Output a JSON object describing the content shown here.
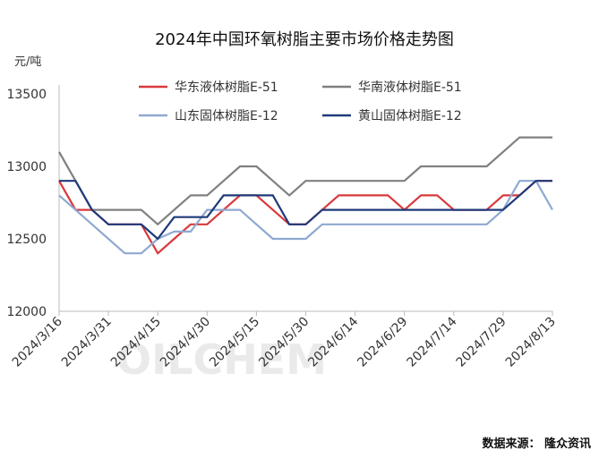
{
  "chart_data": {
    "type": "line",
    "title": "2024年中国环氧树脂主要市场价格走势图",
    "y_label": "元/吨",
    "source": "数据来源：  隆众资讯",
    "watermark": "OILCHEM",
    "x": [
      "2024/3/16",
      "2024/3/21",
      "2024/3/26",
      "2024/3/31",
      "2024/4/5",
      "2024/4/10",
      "2024/4/15",
      "2024/4/20",
      "2024/4/25",
      "2024/4/30",
      "2024/5/5",
      "2024/5/10",
      "2024/5/15",
      "2024/5/20",
      "2024/5/25",
      "2024/5/30",
      "2024/6/4",
      "2024/6/9",
      "2024/6/14",
      "2024/6/19",
      "2024/6/24",
      "2024/6/29",
      "2024/7/4",
      "2024/7/9",
      "2024/7/14",
      "2024/7/19",
      "2024/7/24",
      "2024/7/29",
      "2024/8/3",
      "2024/8/8",
      "2024/8/13"
    ],
    "xticks": [
      "2024/3/16",
      "2024/3/31",
      "2024/4/15",
      "2024/4/30",
      "2024/5/15",
      "2024/5/30",
      "2024/6/14",
      "2024/6/29",
      "2024/7/14",
      "2024/7/29",
      "2024/8/13"
    ],
    "ylim": [
      12000,
      13500
    ],
    "yticks": [
      12000,
      12500,
      13000,
      13500
    ],
    "grid": false,
    "series": [
      {
        "name": "华东液体树脂E-51",
        "color": "#d9393b",
        "values": [
          12900,
          12700,
          12700,
          12600,
          12600,
          12600,
          12400,
          12500,
          12600,
          12600,
          12700,
          12800,
          12800,
          12700,
          12600,
          12600,
          12700,
          12800,
          12800,
          12800,
          12800,
          12700,
          12800,
          12800,
          12700,
          12700,
          12700,
          12800,
          12800,
          12900,
          12900
        ]
      },
      {
        "name": "华南液体树脂E-51",
        "color": "#808080",
        "values": [
          13100,
          12900,
          12700,
          12700,
          12700,
          12700,
          12600,
          12700,
          12800,
          12800,
          12900,
          13000,
          13000,
          12900,
          12800,
          12900,
          12900,
          12900,
          12900,
          12900,
          12900,
          12900,
          13000,
          13000,
          13000,
          13000,
          13000,
          13100,
          13200,
          13200,
          13200
        ]
      },
      {
        "name": "山东固体树脂E-12",
        "color": "#8ea9d1",
        "values": [
          12800,
          12700,
          12600,
          12500,
          12400,
          12400,
          12500,
          12550,
          12550,
          12700,
          12700,
          12700,
          12600,
          12500,
          12500,
          12500,
          12600,
          12600,
          12600,
          12600,
          12600,
          12600,
          12600,
          12600,
          12600,
          12600,
          12600,
          12700,
          12900,
          12900,
          12700
        ]
      },
      {
        "name": "黄山固体树脂E-12",
        "color": "#1f3a7a",
        "values": [
          12900,
          12900,
          12700,
          12600,
          12600,
          12600,
          12500,
          12650,
          12650,
          12650,
          12800,
          12800,
          12800,
          12800,
          12600,
          12600,
          12700,
          12700,
          12700,
          12700,
          12700,
          12700,
          12700,
          12700,
          12700,
          12700,
          12700,
          12700,
          12800,
          12900,
          12900
        ]
      }
    ]
  }
}
